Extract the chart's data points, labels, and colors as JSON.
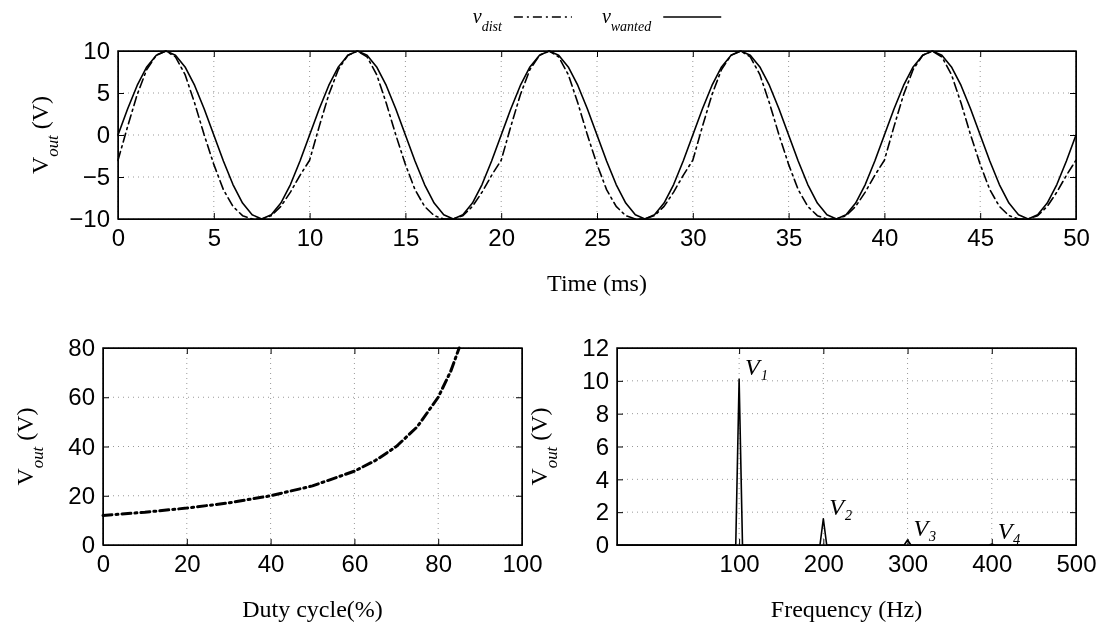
{
  "chart_data": [
    {
      "type": "line",
      "xlabel": "Time (ms)",
      "ylabel": "V$_{out}$ (V)",
      "xlim": [
        0,
        50
      ],
      "xticks": [
        0,
        5,
        10,
        15,
        20,
        25,
        30,
        35,
        40,
        45,
        50
      ],
      "ylim": [
        -10,
        10
      ],
      "yticks": [
        -10,
        -5,
        0,
        5,
        10
      ],
      "grid": true,
      "legend": "top",
      "x": [
        0,
        0.5,
        1,
        1.5,
        2,
        2.5,
        3,
        3.5,
        4,
        4.5,
        5,
        5.5,
        6,
        6.5,
        7,
        7.5,
        8,
        8.5,
        9,
        9.5,
        10,
        10.5,
        11,
        11.5,
        12,
        12.5,
        13,
        13.5,
        14,
        14.5,
        15,
        15.5,
        16,
        16.5,
        17,
        17.5,
        18,
        18.5,
        19,
        19.5,
        20,
        20.5,
        21,
        21.5,
        22,
        22.5,
        23,
        23.5,
        24,
        24.5,
        25,
        25.5,
        26,
        26.5,
        27,
        27.5,
        28,
        28.5,
        29,
        29.5,
        30,
        30.5,
        31,
        31.5,
        32,
        32.5,
        33,
        33.5,
        34,
        34.5,
        35,
        35.5,
        36,
        36.5,
        37,
        37.5,
        38,
        38.5,
        39,
        39.5,
        40,
        40.5,
        41,
        41.5,
        42,
        42.5,
        43,
        43.5,
        44,
        44.5,
        45,
        45.5,
        46,
        46.5,
        47,
        47.5,
        48,
        48.5,
        49,
        49.5,
        50
      ],
      "series": [
        {
          "name": "v$_{dist}$",
          "color": "#000000",
          "line_style": "dashdot",
          "values": [
            -3,
            1,
            4.8,
            7.8,
            9.5,
            10,
            9.3,
            7.2,
            3.8,
            0,
            -3.5,
            -6.5,
            -8.5,
            -9.6,
            -10,
            -10,
            -9.6,
            -8.5,
            -6.8,
            -4.8,
            -3,
            1,
            4.8,
            7.8,
            9.5,
            10,
            9.3,
            7.2,
            3.8,
            0,
            -3.5,
            -6.5,
            -8.5,
            -9.6,
            -10,
            -10,
            -9.6,
            -8.5,
            -6.8,
            -4.8,
            -3,
            1,
            4.8,
            7.8,
            9.5,
            10,
            9.3,
            7.2,
            3.8,
            0,
            -3.5,
            -6.5,
            -8.5,
            -9.6,
            -10,
            -10,
            -9.6,
            -8.5,
            -6.8,
            -4.8,
            -3,
            1,
            4.8,
            7.8,
            9.5,
            10,
            9.3,
            7.2,
            3.8,
            0,
            -3.5,
            -6.5,
            -8.5,
            -9.6,
            -10,
            -10,
            -9.6,
            -8.5,
            -6.8,
            -4.8,
            -3,
            1,
            4.8,
            7.8,
            9.5,
            10,
            9.3,
            7.2,
            3.8,
            0,
            -3.5,
            -6.5,
            -8.5,
            -9.6,
            -10,
            -10,
            -9.6,
            -8.5,
            -6.8,
            -4.8,
            -3
          ]
        },
        {
          "name": "v$_{wanted}$",
          "color": "#000000",
          "line_style": "solid",
          "values": [
            0,
            3.1,
            5.9,
            8.1,
            9.5,
            10,
            9.5,
            8.1,
            5.9,
            3.1,
            0,
            -3.1,
            -5.9,
            -8.1,
            -9.5,
            -10,
            -9.5,
            -8.1,
            -5.9,
            -3.1,
            0,
            3.1,
            5.9,
            8.1,
            9.5,
            10,
            9.5,
            8.1,
            5.9,
            3.1,
            0,
            -3.1,
            -5.9,
            -8.1,
            -9.5,
            -10,
            -9.5,
            -8.1,
            -5.9,
            -3.1,
            0,
            3.1,
            5.9,
            8.1,
            9.5,
            10,
            9.5,
            8.1,
            5.9,
            3.1,
            0,
            -3.1,
            -5.9,
            -8.1,
            -9.5,
            -10,
            -9.5,
            -8.1,
            -5.9,
            -3.1,
            0,
            3.1,
            5.9,
            8.1,
            9.5,
            10,
            9.5,
            8.1,
            5.9,
            3.1,
            0,
            -3.1,
            -5.9,
            -8.1,
            -9.5,
            -10,
            -9.5,
            -8.1,
            -5.9,
            -3.1,
            0,
            3.1,
            5.9,
            8.1,
            9.5,
            10,
            9.5,
            8.1,
            5.9,
            3.1,
            0,
            -3.1,
            -5.9,
            -8.1,
            -9.5,
            -10,
            -9.5,
            -8.1,
            -5.9,
            -3.1,
            0
          ]
        }
      ]
    },
    {
      "type": "line",
      "xlabel": "Duty cycle(%)",
      "ylabel": "V$_{out}$ (V)",
      "xlim": [
        0,
        100
      ],
      "xticks": [
        0,
        20,
        40,
        60,
        80,
        100
      ],
      "ylim": [
        0,
        80
      ],
      "yticks": [
        0,
        20,
        40,
        60,
        80
      ],
      "grid": true,
      "x": [
        0,
        10,
        20,
        30,
        40,
        50,
        60,
        65,
        70,
        75,
        80,
        83,
        85
      ],
      "series": [
        {
          "color": "#000000",
          "line_style": "dashdot",
          "values": [
            12,
            13.3,
            15,
            17.1,
            20,
            24,
            30,
            34.3,
            40,
            48,
            60,
            70.6,
            80
          ]
        }
      ]
    },
    {
      "type": "line",
      "xlabel": "Frequency (Hz)",
      "ylabel": "V$_{out}$ (V)",
      "xlim": [
        -45,
        500
      ],
      "xticks": [
        100,
        200,
        300,
        400,
        500
      ],
      "ylim": [
        0,
        12
      ],
      "yticks": [
        0,
        2,
        4,
        6,
        8,
        10,
        12
      ],
      "grid": true,
      "x": [
        -45,
        96,
        100,
        104,
        196,
        200,
        204,
        296,
        300,
        304,
        396,
        400,
        404,
        500
      ],
      "series": [
        {
          "color": "#000000",
          "line_style": "solid",
          "values": [
            0,
            0,
            10.1,
            0,
            0,
            1.6,
            0,
            0,
            0.3,
            0,
            0,
            0.05,
            0,
            0
          ]
        }
      ],
      "annotations": [
        {
          "text": "V₁",
          "x": 100,
          "y": 10.1
        },
        {
          "text": "V₂",
          "x": 200,
          "y": 1.6
        },
        {
          "text": "V₃",
          "x": 300,
          "y": 0.3
        },
        {
          "text": "V₄",
          "x": 400,
          "y": 0.05
        }
      ]
    }
  ]
}
